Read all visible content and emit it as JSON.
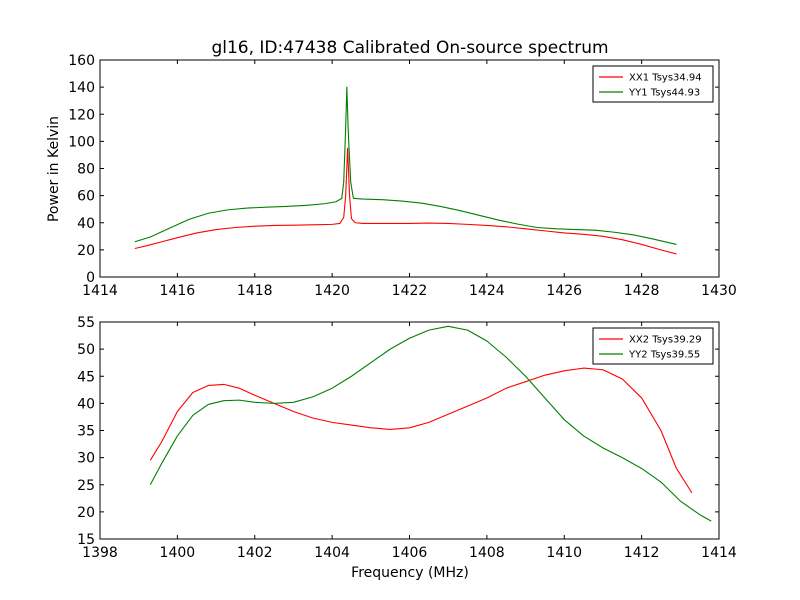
{
  "chart_data": [
    {
      "type": "line",
      "title": "gl16, ID:47438 Calibrated On-source spectrum",
      "xlabel": "",
      "ylabel": "Power in Kelvin",
      "xlim": [
        1414,
        1430
      ],
      "ylim": [
        0,
        160
      ],
      "x_ticks": [
        "1414",
        "1416",
        "1418",
        "1420",
        "1422",
        "1424",
        "1426",
        "1428",
        "1430"
      ],
      "y_ticks": [
        "0",
        "20",
        "40",
        "60",
        "80",
        "100",
        "120",
        "140",
        "160"
      ],
      "grid": false,
      "legend_position": "top-right",
      "series": [
        {
          "name": "XX1 Tsys34.94",
          "color": "#ff0000",
          "points": [
            [
              1414.9,
              21
            ],
            [
              1415.2,
              23
            ],
            [
              1415.6,
              26
            ],
            [
              1416.0,
              29
            ],
            [
              1416.5,
              32.5
            ],
            [
              1417.0,
              35
            ],
            [
              1417.5,
              36.5
            ],
            [
              1418.0,
              37.5
            ],
            [
              1418.5,
              38
            ],
            [
              1419.0,
              38.2
            ],
            [
              1419.5,
              38.5
            ],
            [
              1420.0,
              38.8
            ],
            [
              1420.2,
              39.5
            ],
            [
              1420.3,
              44
            ],
            [
              1420.35,
              60
            ],
            [
              1420.4,
              95
            ],
            [
              1420.45,
              60
            ],
            [
              1420.5,
              43
            ],
            [
              1420.6,
              40
            ],
            [
              1420.8,
              39.5
            ],
            [
              1421.5,
              39.5
            ],
            [
              1422.0,
              39.5
            ],
            [
              1422.5,
              39.8
            ],
            [
              1423.0,
              39.5
            ],
            [
              1423.5,
              38.8
            ],
            [
              1424.0,
              38
            ],
            [
              1424.5,
              37
            ],
            [
              1425.0,
              35.5
            ],
            [
              1425.5,
              34
            ],
            [
              1426.0,
              32.5
            ],
            [
              1426.5,
              31.5
            ],
            [
              1427.0,
              30
            ],
            [
              1427.5,
              27.5
            ],
            [
              1428.0,
              24
            ],
            [
              1428.5,
              20
            ],
            [
              1428.9,
              17
            ]
          ]
        },
        {
          "name": "YY1 Tsys44.93",
          "color": "#008000",
          "points": [
            [
              1414.9,
              26
            ],
            [
              1415.3,
              29.5
            ],
            [
              1415.8,
              36
            ],
            [
              1416.3,
              42.5
            ],
            [
              1416.8,
              47
            ],
            [
              1417.3,
              49.5
            ],
            [
              1417.8,
              50.8
            ],
            [
              1418.3,
              51.5
            ],
            [
              1418.8,
              52
            ],
            [
              1419.3,
              52.8
            ],
            [
              1419.8,
              54
            ],
            [
              1420.1,
              55.5
            ],
            [
              1420.25,
              58
            ],
            [
              1420.3,
              70
            ],
            [
              1420.35,
              110
            ],
            [
              1420.38,
              140
            ],
            [
              1420.42,
              105
            ],
            [
              1420.48,
              70
            ],
            [
              1420.55,
              58
            ],
            [
              1420.8,
              57.5
            ],
            [
              1421.3,
              57
            ],
            [
              1421.8,
              56
            ],
            [
              1422.3,
              54.5
            ],
            [
              1422.8,
              52
            ],
            [
              1423.3,
              49
            ],
            [
              1423.8,
              45.5
            ],
            [
              1424.3,
              42
            ],
            [
              1424.8,
              39
            ],
            [
              1425.3,
              36.5
            ],
            [
              1425.8,
              35.5
            ],
            [
              1426.3,
              35
            ],
            [
              1426.8,
              34.5
            ],
            [
              1427.3,
              33
            ],
            [
              1427.8,
              31
            ],
            [
              1428.3,
              28
            ],
            [
              1428.9,
              24
            ]
          ]
        }
      ]
    },
    {
      "type": "line",
      "title": "",
      "xlabel": "Frequency (MHz)",
      "ylabel": "",
      "xlim": [
        1398,
        1414
      ],
      "ylim": [
        15,
        55
      ],
      "x_ticks": [
        "1398",
        "1400",
        "1402",
        "1404",
        "1406",
        "1408",
        "1410",
        "1412",
        "1414"
      ],
      "y_ticks": [
        "15",
        "20",
        "25",
        "30",
        "35",
        "40",
        "45",
        "50",
        "55"
      ],
      "grid": false,
      "legend_position": "top-right",
      "series": [
        {
          "name": "XX2 Tsys39.29",
          "color": "#ff0000",
          "points": [
            [
              1399.3,
              29.5
            ],
            [
              1399.6,
              33
            ],
            [
              1400.0,
              38.5
            ],
            [
              1400.4,
              42
            ],
            [
              1400.8,
              43.3
            ],
            [
              1401.2,
              43.5
            ],
            [
              1401.6,
              42.8
            ],
            [
              1402.0,
              41.5
            ],
            [
              1402.5,
              40
            ],
            [
              1403.0,
              38.5
            ],
            [
              1403.5,
              37.3
            ],
            [
              1404.0,
              36.5
            ],
            [
              1404.5,
              36
            ],
            [
              1405.0,
              35.5
            ],
            [
              1405.5,
              35.2
            ],
            [
              1406.0,
              35.5
            ],
            [
              1406.5,
              36.5
            ],
            [
              1407.0,
              38
            ],
            [
              1407.5,
              39.5
            ],
            [
              1408.0,
              41
            ],
            [
              1408.5,
              42.8
            ],
            [
              1409.0,
              44
            ],
            [
              1409.5,
              45.2
            ],
            [
              1410.0,
              46
            ],
            [
              1410.5,
              46.5
            ],
            [
              1411.0,
              46.2
            ],
            [
              1411.5,
              44.5
            ],
            [
              1412.0,
              41
            ],
            [
              1412.5,
              35
            ],
            [
              1412.9,
              28
            ],
            [
              1413.3,
              23.5
            ]
          ]
        },
        {
          "name": "YY2 Tsys39.55",
          "color": "#008000",
          "points": [
            [
              1399.3,
              25
            ],
            [
              1399.6,
              29
            ],
            [
              1400.0,
              34
            ],
            [
              1400.4,
              37.8
            ],
            [
              1400.8,
              39.8
            ],
            [
              1401.2,
              40.5
            ],
            [
              1401.6,
              40.6
            ],
            [
              1402.0,
              40.2
            ],
            [
              1402.5,
              40
            ],
            [
              1403.0,
              40.2
            ],
            [
              1403.5,
              41.2
            ],
            [
              1404.0,
              42.8
            ],
            [
              1404.5,
              45
            ],
            [
              1405.0,
              47.5
            ],
            [
              1405.5,
              50
            ],
            [
              1406.0,
              52
            ],
            [
              1406.5,
              53.5
            ],
            [
              1407.0,
              54.2
            ],
            [
              1407.5,
              53.5
            ],
            [
              1408.0,
              51.5
            ],
            [
              1408.5,
              48.5
            ],
            [
              1409.0,
              45
            ],
            [
              1409.5,
              41
            ],
            [
              1410.0,
              37
            ],
            [
              1410.5,
              34
            ],
            [
              1411.0,
              31.8
            ],
            [
              1411.5,
              30
            ],
            [
              1412.0,
              28
            ],
            [
              1412.5,
              25.5
            ],
            [
              1413.0,
              22
            ],
            [
              1413.5,
              19.5
            ],
            [
              1413.8,
              18.3
            ]
          ]
        }
      ]
    }
  ]
}
